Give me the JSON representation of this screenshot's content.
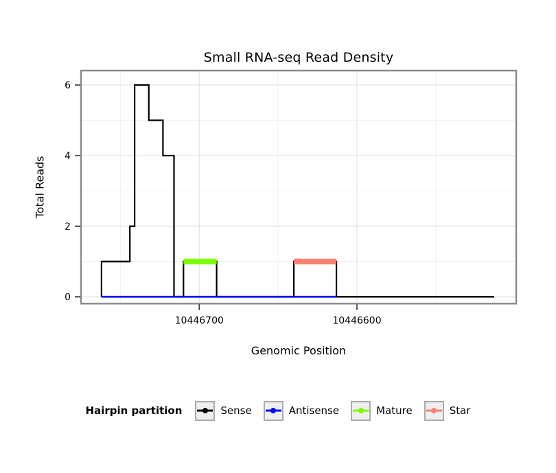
{
  "chart_data": {
    "type": "line",
    "title": "Small RNA-seq Read Density",
    "xlabel": "Genomic Position",
    "ylabel": "Total Reads",
    "x_axis_reversed": true,
    "xlim": [
      10446775,
      10446499
    ],
    "ylim": [
      0,
      6
    ],
    "x_ticks": [
      {
        "pos": 10446700,
        "label": "10446700"
      },
      {
        "pos": 10446600,
        "label": "10446600"
      }
    ],
    "y_ticks": [
      {
        "value": 0,
        "label": "0"
      },
      {
        "value": 2,
        "label": "2"
      },
      {
        "value": 4,
        "label": "4"
      },
      {
        "value": 6,
        "label": "6"
      }
    ],
    "grid": {
      "major_color": "#e4e4e4",
      "minor_color": "#f2f2f2",
      "y_major": [
        0,
        2,
        4,
        6
      ],
      "y_minor": [
        1,
        3,
        5
      ],
      "x_major": [
        10446700,
        10446600
      ],
      "x_minor": [
        10446750,
        10446650,
        10446550
      ]
    },
    "panel": {
      "background": "#ffffff",
      "border_color": "#8c8c8c"
    },
    "series": [
      {
        "name": "Sense",
        "color": "#000000",
        "width": 2.2,
        "points": [
          [
            10446762,
            0
          ],
          [
            10446762,
            1
          ],
          [
            10446744,
            1
          ],
          [
            10446744,
            2
          ],
          [
            10446741,
            2
          ],
          [
            10446741,
            6
          ],
          [
            10446732,
            6
          ],
          [
            10446732,
            5
          ],
          [
            10446723,
            5
          ],
          [
            10446723,
            4
          ],
          [
            10446716,
            4
          ],
          [
            10446716,
            0
          ],
          [
            10446710,
            0
          ],
          [
            10446710,
            1
          ],
          [
            10446689,
            1
          ],
          [
            10446689,
            0
          ],
          [
            10446640,
            0
          ],
          [
            10446640,
            1
          ],
          [
            10446613,
            1
          ],
          [
            10446613,
            0
          ],
          [
            10446513,
            0
          ]
        ]
      },
      {
        "name": "Antisense",
        "color": "#0000ff",
        "width": 2.4,
        "points": [
          [
            10446762,
            0
          ],
          [
            10446613,
            0
          ]
        ]
      },
      {
        "name": "Mature",
        "color": "#7cfc00",
        "width": 8,
        "points": [
          [
            10446710,
            1
          ],
          [
            10446689,
            1
          ]
        ]
      },
      {
        "name": "Star",
        "color": "#fa8072",
        "width": 8,
        "points": [
          [
            10446640,
            1
          ],
          [
            10446613,
            1
          ]
        ]
      }
    ]
  },
  "legend": {
    "title": "Hairpin partition",
    "items": [
      {
        "label": "Sense",
        "color": "#000000"
      },
      {
        "label": "Antisense",
        "color": "#0000ff"
      },
      {
        "label": "Mature",
        "color": "#7cfc00"
      },
      {
        "label": "Star",
        "color": "#fa8072"
      }
    ]
  }
}
